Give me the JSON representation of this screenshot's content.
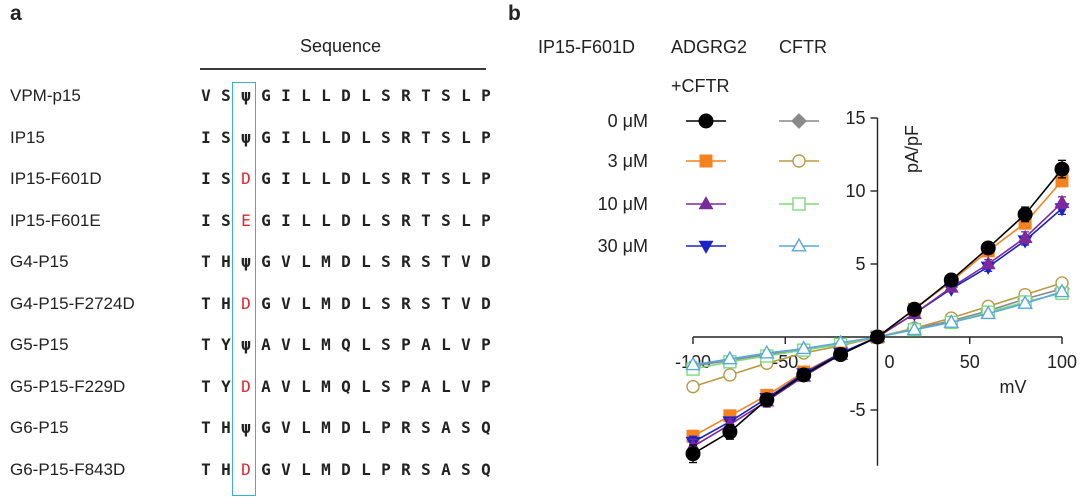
{
  "panel_a": {
    "label": "a",
    "header": "Sequence",
    "rows": [
      {
        "name": "VPM-p15",
        "residues": [
          "V",
          "S",
          "ψ",
          "G",
          "I",
          "L",
          "L",
          "D",
          "L",
          "S",
          "R",
          "T",
          "S",
          "L",
          "P"
        ]
      },
      {
        "name": "IP15",
        "residues": [
          "I",
          "S",
          "ψ",
          "G",
          "I",
          "L",
          "L",
          "D",
          "L",
          "S",
          "R",
          "T",
          "S",
          "L",
          "P"
        ]
      },
      {
        "name": "IP15-F601D",
        "residues": [
          "I",
          "S",
          "D",
          "G",
          "I",
          "L",
          "L",
          "D",
          "L",
          "S",
          "R",
          "T",
          "S",
          "L",
          "P"
        ]
      },
      {
        "name": "IP15-F601E",
        "residues": [
          "I",
          "S",
          "E",
          "G",
          "I",
          "L",
          "L",
          "D",
          "L",
          "S",
          "R",
          "T",
          "S",
          "L",
          "P"
        ]
      },
      {
        "name": "G4-P15",
        "residues": [
          "T",
          "H",
          "ψ",
          "G",
          "V",
          "L",
          "M",
          "D",
          "L",
          "S",
          "R",
          "S",
          "T",
          "V",
          "D"
        ]
      },
      {
        "name": "G4-P15-F2724D",
        "residues": [
          "T",
          "H",
          "D",
          "G",
          "V",
          "L",
          "M",
          "D",
          "L",
          "S",
          "R",
          "S",
          "T",
          "V",
          "D"
        ]
      },
      {
        "name": "G5-P15",
        "residues": [
          "T",
          "Y",
          "ψ",
          "A",
          "V",
          "L",
          "M",
          "Q",
          "L",
          "S",
          "P",
          "A",
          "L",
          "V",
          "P"
        ]
      },
      {
        "name": "G5-P15-F229D",
        "residues": [
          "T",
          "Y",
          "D",
          "A",
          "V",
          "L",
          "M",
          "Q",
          "L",
          "S",
          "P",
          "A",
          "L",
          "V",
          "P"
        ]
      },
      {
        "name": "G6-P15",
        "residues": [
          "T",
          "H",
          "ψ",
          "G",
          "V",
          "L",
          "M",
          "D",
          "L",
          "P",
          "R",
          "S",
          "A",
          "S",
          "Q"
        ]
      },
      {
        "name": "G6-P15-F843D",
        "residues": [
          "T",
          "H",
          "D",
          "G",
          "V",
          "L",
          "M",
          "D",
          "L",
          "P",
          "R",
          "S",
          "A",
          "S",
          "Q"
        ]
      }
    ],
    "highlight_color": "#e3242b",
    "box_color": "#36b2d6"
  },
  "panel_b": {
    "label": "b"
  },
  "chart_data": {
    "type": "line",
    "title": "",
    "xlabel": "mV",
    "ylabel": "pA/pF",
    "xlim": [
      -100,
      100
    ],
    "ylim": [
      -8,
      15
    ],
    "x": [
      -100,
      -80,
      -60,
      -40,
      -20,
      0,
      20,
      40,
      60,
      80,
      100
    ],
    "xticks": [
      -100,
      -50,
      0,
      50,
      100
    ],
    "xtick_labels": [
      "-100",
      "-50",
      "0",
      "50",
      "100"
    ],
    "yticks": [
      -5,
      5,
      10,
      15
    ],
    "ytick_labels": [
      "-5",
      "5",
      "10",
      "15"
    ],
    "legend": {
      "row_label_header": "IP15-F601D",
      "col1_header": "ADGRG2",
      "col1_header_line2": "+CFTR",
      "col2_header": "CFTR",
      "row_labels": [
        "0 μM",
        "3 μM",
        "10 μM",
        "30 μM"
      ],
      "placement": "top-left"
    },
    "series": [
      {
        "name": "ADGRG2+CFTR 0 μM",
        "group": "ADGRG2+CFTR",
        "dose": "0 μM",
        "marker": "circle",
        "filled": true,
        "color": "#000000",
        "values": [
          -8.0,
          -6.5,
          -4.3,
          -2.6,
          -1.2,
          0.0,
          1.9,
          3.9,
          6.1,
          8.4,
          11.5
        ],
        "errors": [
          0.6,
          0.5,
          0.4,
          0.3,
          0.2,
          0,
          0.2,
          0.3,
          0.3,
          0.5,
          0.6
        ]
      },
      {
        "name": "ADGRG2+CFTR 3 μM",
        "group": "ADGRG2+CFTR",
        "dose": "3 μM",
        "marker": "square",
        "filled": true,
        "color": "#f5821f",
        "values": [
          -6.8,
          -5.4,
          -4.0,
          -2.4,
          -1.1,
          0.0,
          1.9,
          3.8,
          5.9,
          7.8,
          10.7
        ],
        "errors": [
          0.4,
          0.3,
          0.3,
          0.2,
          0.2,
          0,
          0.2,
          0.2,
          0.3,
          0.4,
          0.4
        ]
      },
      {
        "name": "ADGRG2+CFTR 10 μM",
        "group": "ADGRG2+CFTR",
        "dose": "10 μM",
        "marker": "triangle-up",
        "filled": true,
        "color": "#7b2a9d",
        "values": [
          -7.5,
          -6.0,
          -4.4,
          -2.7,
          -1.2,
          0.0,
          1.6,
          3.4,
          5.0,
          6.8,
          9.2
        ],
        "errors": [
          0.5,
          0.4,
          0.4,
          0.3,
          0.2,
          0,
          0.2,
          0.3,
          0.3,
          0.4,
          0.4
        ]
      },
      {
        "name": "ADGRG2+CFTR 30 μM",
        "group": "ADGRG2+CFTR",
        "dose": "30 μM",
        "marker": "triangle-down",
        "filled": true,
        "color": "#1c22c9",
        "values": [
          -7.2,
          -5.8,
          -4.2,
          -2.5,
          -1.1,
          0.0,
          1.6,
          3.3,
          4.8,
          6.6,
          8.8
        ],
        "errors": [
          0.4,
          0.3,
          0.3,
          0.2,
          0.2,
          0,
          0.2,
          0.2,
          0.3,
          0.3,
          0.4
        ]
      },
      {
        "name": "CFTR 0 μM",
        "group": "CFTR",
        "dose": "0 μM",
        "marker": "diamond",
        "filled": true,
        "color": "#8a8a8a",
        "values": [
          -2.0,
          -1.6,
          -1.2,
          -0.9,
          -0.5,
          0.0,
          0.6,
          1.1,
          1.8,
          2.6,
          3.3
        ],
        "errors": [
          0.2,
          0.2,
          0.1,
          0.1,
          0.1,
          0,
          0.1,
          0.1,
          0.1,
          0.2,
          0.2
        ]
      },
      {
        "name": "CFTR 3 μM",
        "group": "CFTR",
        "dose": "3 μM",
        "marker": "circle",
        "filled": false,
        "color": "#b89a45",
        "values": [
          -3.4,
          -2.6,
          -1.8,
          -1.1,
          -0.6,
          0.0,
          0.6,
          1.3,
          2.1,
          2.9,
          3.7
        ],
        "errors": [
          0.3,
          0.2,
          0.2,
          0.1,
          0.1,
          0,
          0.1,
          0.1,
          0.1,
          0.2,
          0.2
        ]
      },
      {
        "name": "CFTR 10 μM",
        "group": "CFTR",
        "dose": "10 μM",
        "marker": "square",
        "filled": false,
        "color": "#7fd97f",
        "values": [
          -2.2,
          -1.7,
          -1.3,
          -0.9,
          -0.5,
          0.0,
          0.5,
          1.0,
          1.7,
          2.4,
          3.0
        ],
        "errors": [
          0.2,
          0.2,
          0.1,
          0.1,
          0.1,
          0,
          0.1,
          0.1,
          0.1,
          0.2,
          0.2
        ]
      },
      {
        "name": "CFTR 30 μM",
        "group": "CFTR",
        "dose": "30 μM",
        "marker": "triangle-up",
        "filled": false,
        "color": "#5aa7e0",
        "values": [
          -1.9,
          -1.5,
          -1.1,
          -0.8,
          -0.4,
          0.0,
          0.5,
          1.0,
          1.6,
          2.3,
          3.1
        ],
        "errors": [
          0.2,
          0.1,
          0.1,
          0.1,
          0.1,
          0,
          0.1,
          0.1,
          0.1,
          0.2,
          0.2
        ]
      }
    ]
  }
}
